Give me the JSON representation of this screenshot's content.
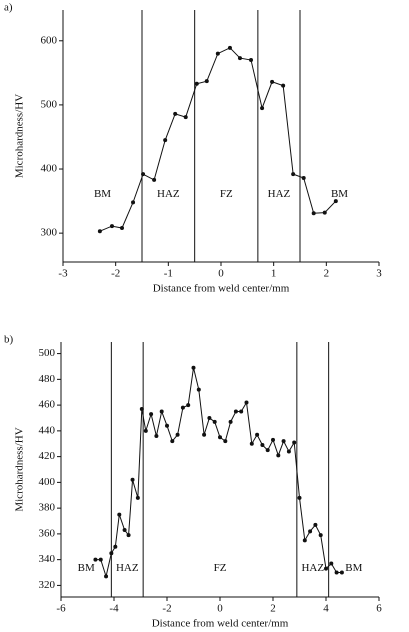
{
  "chart_data": [
    {
      "type": "line",
      "panel_label": "a)",
      "xlabel": "Distance from weld center/mm",
      "ylabel": "Microhardness/HV",
      "x": [
        -2.3,
        -2.07,
        -1.88,
        -1.67,
        -1.48,
        -1.27,
        -1.06,
        -0.87,
        -0.67,
        -0.46,
        -0.27,
        -0.06,
        0.17,
        0.36,
        0.57,
        0.78,
        0.97,
        1.18,
        1.37,
        1.57,
        1.76,
        1.97,
        2.18
      ],
      "series": [
        {
          "color": "#111111",
          "values": [
            303,
            311,
            308,
            348,
            392,
            383,
            445,
            486,
            481,
            533,
            537,
            580,
            589,
            573,
            570,
            495,
            536,
            530,
            392,
            386,
            331,
            332,
            350
          ]
        }
      ],
      "xlim": [
        -3,
        3
      ],
      "xticks": [
        -3,
        -2,
        -1,
        0,
        1,
        2,
        3
      ],
      "ylim": [
        255,
        648
      ],
      "yticks": [
        300,
        400,
        500,
        600
      ],
      "boundaries": [
        -1.5,
        -0.5,
        0.7,
        1.5
      ],
      "region_labels": [
        "BM",
        "HAZ",
        "FZ",
        "HAZ",
        "BM"
      ],
      "region_label_y": 360
    },
    {
      "type": "line",
      "panel_label": "b)",
      "xlabel": "Distance from weld center/mm",
      "ylabel": "Microhardness/HV",
      "x": [
        -4.7,
        -4.5,
        -4.3,
        -4.1,
        -3.95,
        -3.8,
        -3.6,
        -3.45,
        -3.3,
        -3.1,
        -2.95,
        -2.8,
        -2.6,
        -2.4,
        -2.2,
        -2.0,
        -1.8,
        -1.6,
        -1.4,
        -1.2,
        -1.0,
        -0.8,
        -0.6,
        -0.4,
        -0.2,
        0,
        0.2,
        0.4,
        0.6,
        0.8,
        1.0,
        1.2,
        1.4,
        1.6,
        1.8,
        2.0,
        2.2,
        2.4,
        2.6,
        2.8,
        3.0,
        3.2,
        3.4,
        3.6,
        3.8,
        4.0,
        4.2,
        4.4,
        4.6
      ],
      "series": [
        {
          "color": "#111111",
          "values": [
            340,
            340,
            327,
            345,
            350,
            375,
            363,
            359,
            402,
            388,
            457,
            440,
            453,
            436,
            455,
            444,
            432,
            437,
            458,
            460,
            489,
            472,
            437,
            450,
            447,
            435,
            432,
            447,
            455,
            455,
            462,
            430,
            437,
            429,
            425,
            433,
            421,
            432,
            424,
            431,
            388,
            355,
            362,
            367,
            359,
            333,
            337,
            330,
            330
          ]
        }
      ],
      "xlim": [
        -6,
        6
      ],
      "xticks": [
        -6,
        -4,
        -2,
        0,
        2,
        4,
        6
      ],
      "ylim": [
        311,
        509
      ],
      "yticks": [
        320,
        340,
        360,
        380,
        400,
        420,
        440,
        460,
        480,
        500
      ],
      "boundaries": [
        -4.1,
        -2.9,
        2.9,
        4.1
      ],
      "region_labels": [
        "BM",
        "HAZ",
        "FZ",
        "HAZ",
        "BM"
      ],
      "region_label_y": 333
    }
  ]
}
